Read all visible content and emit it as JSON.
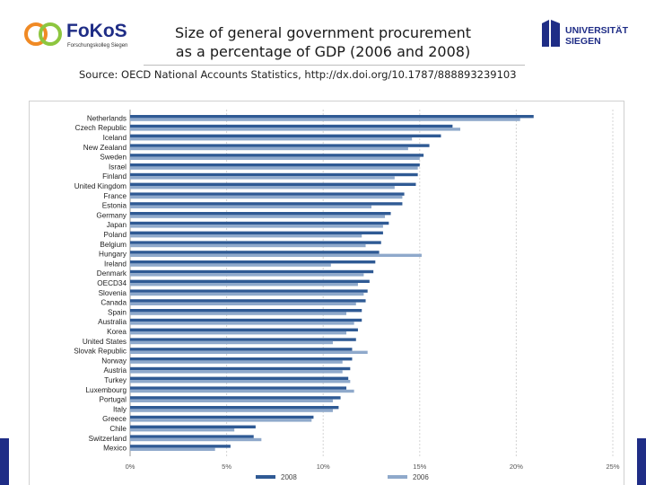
{
  "header": {
    "logo_left": {
      "name": "FoKoS",
      "tagline": "Forschungskolleg Siegen",
      "colors": {
        "orange": "#f08a24",
        "green": "#8dc63f",
        "navy": "#1f2d86"
      }
    },
    "logo_right": {
      "line1": "UNIVERSITÄT",
      "line2": "SIEGEN",
      "color": "#1f2d86"
    },
    "title_line1": "Size of general government procurement",
    "title_line2": "as a percentage of GDP (2006 and 2008)",
    "source": "Source: OECD National Accounts Statistics, http://dx.doi.org/10.1787/888893239103"
  },
  "chart_data": {
    "type": "bar",
    "orientation": "horizontal",
    "categories": [
      "Netherlands",
      "Czech Republic",
      "Iceland",
      "New Zealand",
      "Sweden",
      "Israel",
      "Finland",
      "United Kingdom",
      "France",
      "Estonia",
      "Germany",
      "Japan",
      "Poland",
      "Belgium",
      "Hungary",
      "Ireland",
      "Denmark",
      "OECD34",
      "Slovenia",
      "Canada",
      "Spain",
      "Australia",
      "Korea",
      "United States",
      "Slovak Republic",
      "Norway",
      "Austria",
      "Turkey",
      "Luxembourg",
      "Portugal",
      "Italy",
      "Greece",
      "Chile",
      "Switzerland",
      "Mexico"
    ],
    "series": [
      {
        "name": "2008",
        "color": "#2f5a94",
        "values": [
          20.9,
          16.7,
          16.1,
          15.5,
          15.2,
          15.0,
          14.9,
          14.8,
          14.2,
          14.1,
          13.5,
          13.4,
          13.1,
          13.0,
          12.9,
          12.7,
          12.6,
          12.4,
          12.3,
          12.2,
          12.0,
          12.0,
          11.8,
          11.7,
          11.5,
          11.5,
          11.4,
          11.3,
          11.2,
          10.9,
          10.8,
          9.5,
          6.5,
          6.4,
          5.2
        ]
      },
      {
        "name": "2006",
        "color": "#8fa9cb",
        "values": [
          20.2,
          17.1,
          14.6,
          14.4,
          15.0,
          14.9,
          13.7,
          13.7,
          14.1,
          12.5,
          13.2,
          13.1,
          12.0,
          12.2,
          15.1,
          10.4,
          12.1,
          11.8,
          12.1,
          11.7,
          11.2,
          11.6,
          11.2,
          10.5,
          12.3,
          11.0,
          11.0,
          11.4,
          11.6,
          10.5,
          10.5,
          9.4,
          5.4,
          6.8,
          4.4
        ]
      }
    ],
    "xlim": [
      0,
      25
    ],
    "x_ticks": [
      "0%",
      "5%",
      "10%",
      "15%",
      "20%",
      "25%"
    ],
    "grid": true,
    "legend_position": "bottom",
    "title": "Size of general government procurement as a percentage of GDP (2006 and 2008)"
  }
}
